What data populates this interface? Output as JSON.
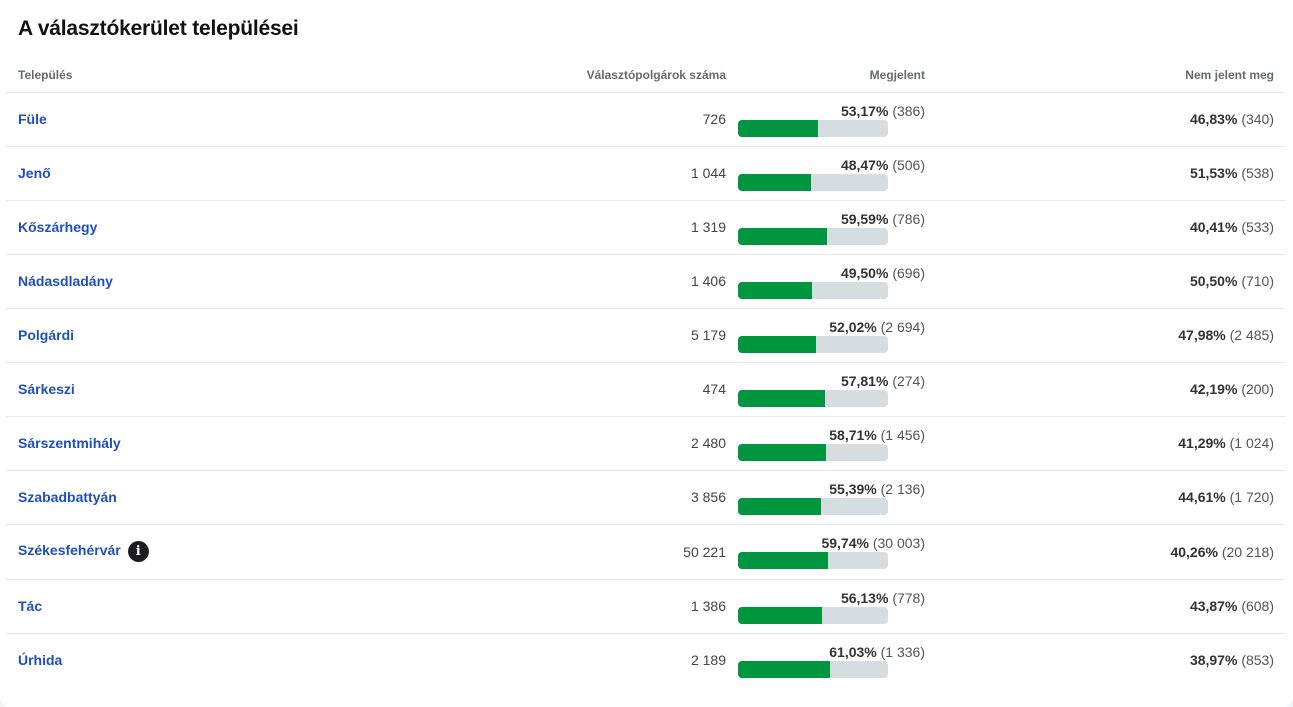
{
  "title": "A választókerület települései",
  "columns": {
    "settlement": "Település",
    "voters": "Választópolgárok száma",
    "turnout": "Megjelent",
    "absent": "Nem jelent meg"
  },
  "colors": {
    "bar_fill": "#009640",
    "bar_track": "#d6dde0",
    "link": "#1f4fbf"
  },
  "rows": [
    {
      "name": "Füle",
      "voters": "726",
      "turnout_pct": "53,17%",
      "turnout_cnt": "(386)",
      "turnout_ratio": 0.5317,
      "absent_pct": "46,83%",
      "absent_cnt": "(340)",
      "info": false
    },
    {
      "name": "Jenő",
      "voters": "1 044",
      "turnout_pct": "48,47%",
      "turnout_cnt": "(506)",
      "turnout_ratio": 0.4847,
      "absent_pct": "51,53%",
      "absent_cnt": "(538)",
      "info": false
    },
    {
      "name": "Kőszárhegy",
      "voters": "1 319",
      "turnout_pct": "59,59%",
      "turnout_cnt": "(786)",
      "turnout_ratio": 0.5959,
      "absent_pct": "40,41%",
      "absent_cnt": "(533)",
      "info": false
    },
    {
      "name": "Nádasdladány",
      "voters": "1 406",
      "turnout_pct": "49,50%",
      "turnout_cnt": "(696)",
      "turnout_ratio": 0.495,
      "absent_pct": "50,50%",
      "absent_cnt": "(710)",
      "info": false
    },
    {
      "name": "Polgárdi",
      "voters": "5 179",
      "turnout_pct": "52,02%",
      "turnout_cnt": "(2 694)",
      "turnout_ratio": 0.5202,
      "absent_pct": "47,98%",
      "absent_cnt": "(2 485)",
      "info": false
    },
    {
      "name": "Sárkeszi",
      "voters": "474",
      "turnout_pct": "57,81%",
      "turnout_cnt": "(274)",
      "turnout_ratio": 0.5781,
      "absent_pct": "42,19%",
      "absent_cnt": "(200)",
      "info": false
    },
    {
      "name": "Sárszentmihály",
      "voters": "2 480",
      "turnout_pct": "58,71%",
      "turnout_cnt": "(1 456)",
      "turnout_ratio": 0.5871,
      "absent_pct": "41,29%",
      "absent_cnt": "(1 024)",
      "info": false
    },
    {
      "name": "Szabadbattyán",
      "voters": "3 856",
      "turnout_pct": "55,39%",
      "turnout_cnt": "(2 136)",
      "turnout_ratio": 0.5539,
      "absent_pct": "44,61%",
      "absent_cnt": "(1 720)",
      "info": false
    },
    {
      "name": "Székesfehérvár",
      "voters": "50 221",
      "turnout_pct": "59,74%",
      "turnout_cnt": "(30 003)",
      "turnout_ratio": 0.5974,
      "absent_pct": "40,26%",
      "absent_cnt": "(20 218)",
      "info": true
    },
    {
      "name": "Tác",
      "voters": "1 386",
      "turnout_pct": "56,13%",
      "turnout_cnt": "(778)",
      "turnout_ratio": 0.5613,
      "absent_pct": "43,87%",
      "absent_cnt": "(608)",
      "info": false
    },
    {
      "name": "Úrhida",
      "voters": "2 189",
      "turnout_pct": "61,03%",
      "turnout_cnt": "(1 336)",
      "turnout_ratio": 0.6103,
      "absent_pct": "38,97%",
      "absent_cnt": "(853)",
      "info": false
    }
  ]
}
